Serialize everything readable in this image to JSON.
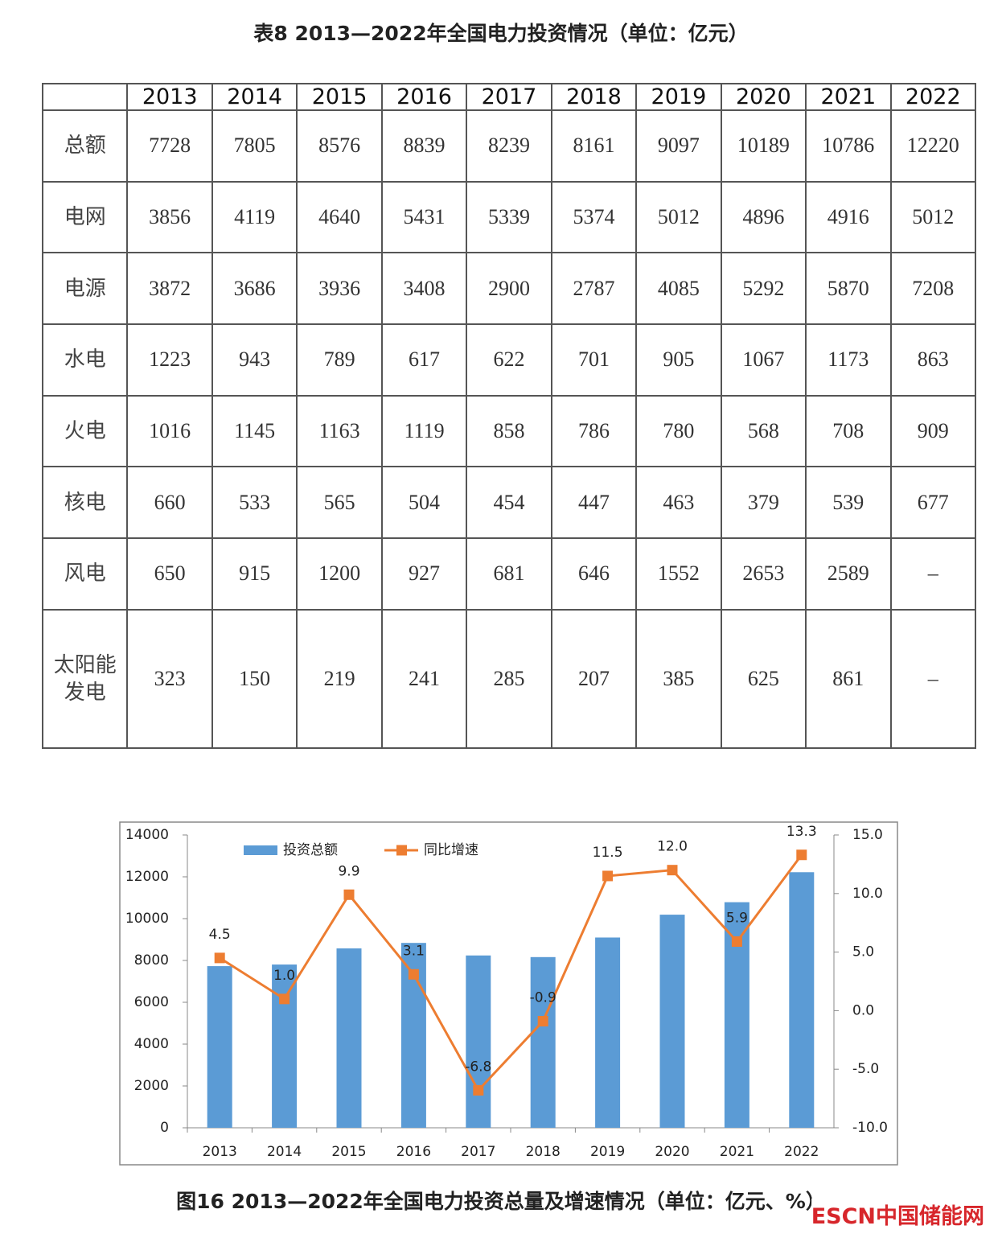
{
  "table": {
    "title": "表8  2013—2022年全国电力投资情况（单位：亿元）",
    "header": [
      "2013",
      "2014",
      "2015",
      "2016",
      "2017",
      "2018",
      "2019",
      "2020",
      "2021",
      "2022"
    ],
    "rows": [
      [
        "总额",
        "7728",
        "7805",
        "8576",
        "8839",
        "8239",
        "8161",
        "9097",
        "10189",
        "10786",
        "12220"
      ],
      [
        "电网",
        "3856",
        "4119",
        "4640",
        "5431",
        "5339",
        "5374",
        "5012",
        "4896",
        "4916",
        "5012"
      ],
      [
        "电源",
        "3872",
        "3686",
        "3936",
        "3408",
        "2900",
        "2787",
        "4085",
        "5292",
        "5870",
        "7208"
      ],
      [
        "水电",
        "1223",
        "943",
        "789",
        "617",
        "622",
        "701",
        "905",
        "1067",
        "1173",
        "863"
      ],
      [
        "火电",
        "1016",
        "1145",
        "1163",
        "1119",
        "858",
        "786",
        "780",
        "568",
        "708",
        "909"
      ],
      [
        "核电",
        "660",
        "533",
        "565",
        "504",
        "454",
        "447",
        "463",
        "379",
        "539",
        "677"
      ],
      [
        "风电",
        "650",
        "915",
        "1200",
        "927",
        "681",
        "646",
        "1552",
        "2653",
        "2589",
        "–"
      ],
      [
        "太阳能发电",
        "323",
        "150",
        "219",
        "241",
        "285",
        "207",
        "385",
        "625",
        "861",
        "–"
      ]
    ]
  },
  "chart_data": {
    "type": "bar-line",
    "caption": "图16  2013—2022年全国电力投资总量及增速情况（单位：亿元、%）",
    "categories": [
      "2013",
      "2014",
      "2015",
      "2016",
      "2017",
      "2018",
      "2019",
      "2020",
      "2021",
      "2022"
    ],
    "series": [
      {
        "name": "投资总额",
        "color": "#5b9bd5",
        "type": "bar",
        "values": [
          7728,
          7805,
          8576,
          8839,
          8239,
          8161,
          9097,
          10189,
          10786,
          12220
        ]
      },
      {
        "name": "同比增速",
        "color": "#ed7d31",
        "type": "line",
        "axis": "y2",
        "values": [
          4.5,
          1.0,
          9.9,
          3.1,
          -6.8,
          -0.9,
          11.5,
          12.0,
          5.9,
          13.3
        ],
        "value_labels": [
          "4.5",
          "1.0",
          "9.9",
          "3.1",
          "-6.8",
          "-0.9",
          "11.5",
          "12.0",
          "5.9",
          "13.3"
        ]
      }
    ],
    "ylim": [
      0,
      14000
    ],
    "yticks": [
      0,
      2000,
      4000,
      6000,
      8000,
      10000,
      12000,
      14000
    ],
    "y2lim": [
      -10,
      15
    ],
    "y2ticks": [
      {
        "value": -10,
        "label": "-10.0"
      },
      {
        "value": -5,
        "label": "-5.0"
      },
      {
        "value": 0,
        "label": "0.0"
      },
      {
        "value": 5,
        "label": "5.0"
      },
      {
        "value": 10,
        "label": "10.0"
      },
      {
        "value": 15,
        "label": "15.0"
      }
    ],
    "grid": false,
    "legend": "top"
  },
  "watermark": "ESCN中国储能网"
}
